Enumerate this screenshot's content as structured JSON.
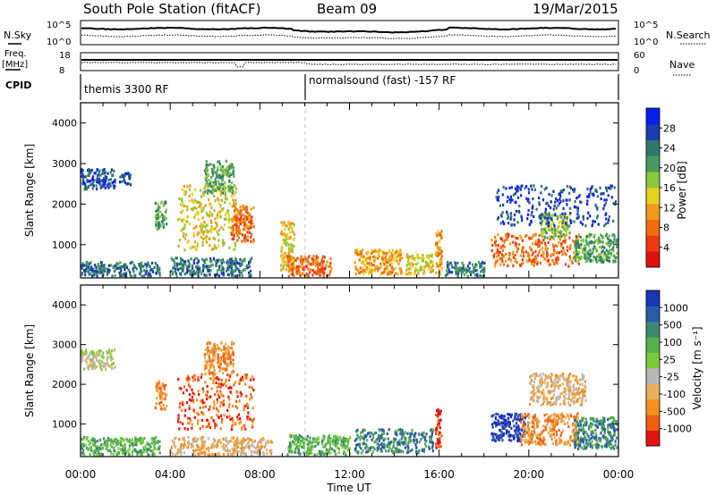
{
  "header": {
    "station": "South Pole Station (fitACF)",
    "beam": "Beam 09",
    "date": "19/Mar/2015"
  },
  "panels": {
    "nsky_label": "N.Sky",
    "nsearch_label": "N.Search",
    "freq_label_line1": "Freq.",
    "freq_label_line2": "[MHz]",
    "nave_label": "Nave",
    "cpid_label": "CPID",
    "noise_ticks": [
      "10^5",
      "10^0"
    ],
    "freq_ticks": [
      "18",
      "8"
    ],
    "nave_ticks": [
      "60",
      "0"
    ]
  },
  "cpid": {
    "segments": [
      {
        "start_h": 0,
        "label": "themis 3300 RF"
      },
      {
        "start_h": 10,
        "label": "normalsound (fast) -157 RF"
      }
    ]
  },
  "chart_data": [
    {
      "type": "heatmap",
      "title": "",
      "xlabel": "",
      "ylabel": "Slant Range [km]",
      "xlim": [
        0,
        24
      ],
      "ylim": [
        180,
        4500
      ],
      "yticks": [
        "1000",
        "2000",
        "3000",
        "4000"
      ],
      "colorbar_label": "Power [dB]",
      "colorbar_ticks": [
        "4",
        "8",
        "12",
        "16",
        "20",
        "24",
        "28"
      ],
      "colorbar_colors": [
        "#0a1ef0",
        "#1c3cb0",
        "#2e7a6a",
        "#4a9a60",
        "#8cc83c",
        "#e6d21e",
        "#f09a18",
        "#f06c10",
        "#ee3a10",
        "#e01010"
      ],
      "clusters": [
        {
          "x_start_h": 0.0,
          "x_end_h": 1.5,
          "range_min_km": 2400,
          "range_max_km": 2900,
          "dominant_level": 1
        },
        {
          "x_start_h": 1.7,
          "x_end_h": 2.2,
          "range_min_km": 2500,
          "range_max_km": 2800,
          "dominant_level": 1
        },
        {
          "x_start_h": 0.0,
          "x_end_h": 3.5,
          "range_min_km": 250,
          "range_max_km": 600,
          "dominant_level": 2
        },
        {
          "x_start_h": 3.3,
          "x_end_h": 3.8,
          "range_min_km": 1400,
          "range_max_km": 2100,
          "dominant_level": 3
        },
        {
          "x_start_h": 4.3,
          "x_end_h": 6.9,
          "range_min_km": 900,
          "range_max_km": 2500,
          "dominant_level": 5
        },
        {
          "x_start_h": 5.5,
          "x_end_h": 6.8,
          "range_min_km": 2300,
          "range_max_km": 3100,
          "dominant_level": 3
        },
        {
          "x_start_h": 6.7,
          "x_end_h": 7.7,
          "range_min_km": 1100,
          "range_max_km": 2000,
          "dominant_level": 7
        },
        {
          "x_start_h": 4.0,
          "x_end_h": 7.6,
          "range_min_km": 250,
          "range_max_km": 700,
          "dominant_level": 2
        },
        {
          "x_start_h": 8.9,
          "x_end_h": 9.5,
          "range_min_km": 400,
          "range_max_km": 1600,
          "dominant_level": 5
        },
        {
          "x_start_h": 9.2,
          "x_end_h": 11.2,
          "range_min_km": 250,
          "range_max_km": 750,
          "dominant_level": 7
        },
        {
          "x_start_h": 12.2,
          "x_end_h": 14.3,
          "range_min_km": 300,
          "range_max_km": 900,
          "dominant_level": 6
        },
        {
          "x_start_h": 14.5,
          "x_end_h": 15.7,
          "range_min_km": 300,
          "range_max_km": 800,
          "dominant_level": 5
        },
        {
          "x_start_h": 15.8,
          "x_end_h": 16.1,
          "range_min_km": 300,
          "range_max_km": 1400,
          "dominant_level": 6
        },
        {
          "x_start_h": 16.2,
          "x_end_h": 18.0,
          "range_min_km": 250,
          "range_max_km": 600,
          "dominant_level": 2
        },
        {
          "x_start_h": 18.3,
          "x_end_h": 22.2,
          "range_min_km": 500,
          "range_max_km": 1300,
          "dominant_level": 7
        },
        {
          "x_start_h": 20.5,
          "x_end_h": 21.8,
          "range_min_km": 1200,
          "range_max_km": 1800,
          "dominant_level": 4
        },
        {
          "x_start_h": 22.0,
          "x_end_h": 23.9,
          "range_min_km": 600,
          "range_max_km": 1300,
          "dominant_level": 3
        },
        {
          "x_start_h": 18.5,
          "x_end_h": 23.9,
          "range_min_km": 1500,
          "range_max_km": 2500,
          "dominant_level": 1
        }
      ]
    },
    {
      "type": "heatmap",
      "title": "",
      "xlabel": "Time UT",
      "ylabel": "Slant Range [km]",
      "xlim": [
        0,
        24
      ],
      "ylim": [
        180,
        4500
      ],
      "xticks": [
        "00:00",
        "04:00",
        "08:00",
        "12:00",
        "16:00",
        "20:00",
        "00:00"
      ],
      "yticks": [
        "1000",
        "2000",
        "3000",
        "4000"
      ],
      "colorbar_label": "Velocity [m s⁻¹]",
      "colorbar_ticks": [
        "1000",
        "500",
        "100",
        "25",
        "-25",
        "-100",
        "-500",
        "-1000"
      ],
      "colorbar_colors": [
        "#1a34b8",
        "#2c58a8",
        "#3a8a70",
        "#5ab050",
        "#78cc3c",
        "#b8b8b8",
        "#e8b060",
        "#f49020",
        "#f06010",
        "#e21414"
      ],
      "clusters": [
        {
          "x_start_h": 0.0,
          "x_end_h": 1.5,
          "range_min_km": 2400,
          "range_max_km": 2900,
          "dominant_level": 5
        },
        {
          "x_start_h": 0.0,
          "x_end_h": 3.5,
          "range_min_km": 250,
          "range_max_km": 700,
          "dominant_level": 3
        },
        {
          "x_start_h": 3.3,
          "x_end_h": 3.8,
          "range_min_km": 1400,
          "range_max_km": 2100,
          "dominant_level": 7
        },
        {
          "x_start_h": 4.3,
          "x_end_h": 7.7,
          "range_min_km": 900,
          "range_max_km": 2300,
          "dominant_level": 8
        },
        {
          "x_start_h": 5.5,
          "x_end_h": 6.8,
          "range_min_km": 2300,
          "range_max_km": 3100,
          "dominant_level": 7
        },
        {
          "x_start_h": 4.0,
          "x_end_h": 8.5,
          "range_min_km": 250,
          "range_max_km": 700,
          "dominant_level": 6
        },
        {
          "x_start_h": 9.2,
          "x_end_h": 12.0,
          "range_min_km": 250,
          "range_max_km": 750,
          "dominant_level": 3
        },
        {
          "x_start_h": 12.2,
          "x_end_h": 15.7,
          "range_min_km": 300,
          "range_max_km": 900,
          "dominant_level": 2
        },
        {
          "x_start_h": 15.8,
          "x_end_h": 16.1,
          "range_min_km": 400,
          "range_max_km": 1400,
          "dominant_level": 9
        },
        {
          "x_start_h": 18.3,
          "x_end_h": 19.8,
          "range_min_km": 600,
          "range_max_km": 1300,
          "dominant_level": 0
        },
        {
          "x_start_h": 19.6,
          "x_end_h": 22.2,
          "range_min_km": 500,
          "range_max_km": 1300,
          "dominant_level": 7
        },
        {
          "x_start_h": 22.0,
          "x_end_h": 23.9,
          "range_min_km": 400,
          "range_max_km": 1200,
          "dominant_level": 2
        },
        {
          "x_start_h": 20.0,
          "x_end_h": 22.5,
          "range_min_km": 1500,
          "range_max_km": 2300,
          "dominant_level": 6
        }
      ]
    }
  ]
}
